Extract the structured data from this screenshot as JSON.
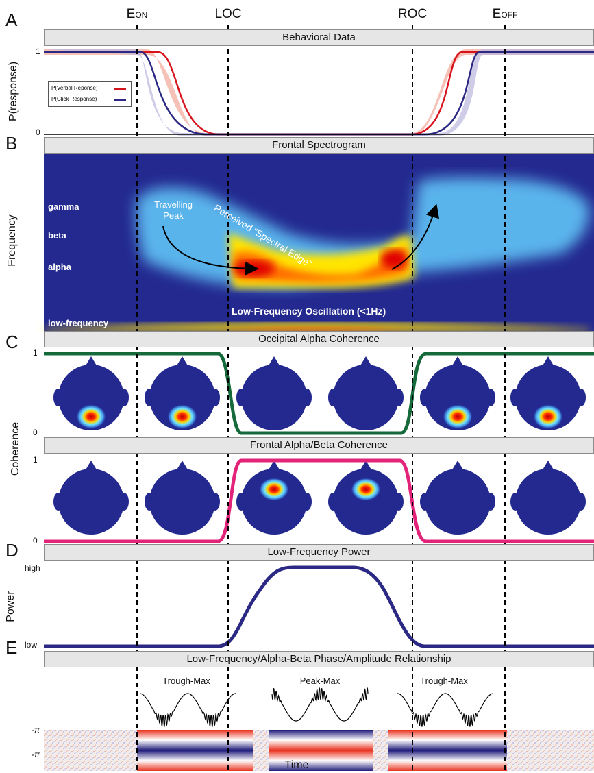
{
  "events": [
    {
      "name": "E_on",
      "label_main": "E",
      "label_sub": "ON",
      "t": 0
    },
    {
      "name": "LOC",
      "label_main": "LOC",
      "label_sub": "",
      "t": 1
    },
    {
      "name": "ROC",
      "label_main": "ROC",
      "label_sub": "",
      "t": 2
    },
    {
      "name": "E_off",
      "label_main": "E",
      "label_sub": "OFF",
      "t": 3
    }
  ],
  "panels": {
    "A": {
      "letter": "A",
      "title": "Behavioral Data",
      "ylabel": "P(response)",
      "ytick_top": "1",
      "ytick_bottom": "0"
    },
    "B": {
      "letter": "B",
      "title": "Frontal Spectrogram",
      "ylabel": "Frequency",
      "bands": [
        "gamma",
        "beta",
        "alpha",
        "low-frequency"
      ],
      "ann_peak": "Travelling Peak",
      "ann_peak_line1": "Travelling",
      "ann_peak_line2": "Peak",
      "ann_edge": "Perceived “Spectral Edge”",
      "ann_slow": "Low-Frequency Oscillation (<1Hz)"
    },
    "C": {
      "letter": "C",
      "title1": "Occipital Alpha Coherence",
      "title2": "Frontal Alpha/Beta Coherence",
      "ylabel": "Coherence",
      "ytick_top": "1",
      "ytick_bottom": "0"
    },
    "D": {
      "letter": "D",
      "title": "Low-Frequency Power",
      "ylabel": "Power",
      "ytick_top": "high",
      "ytick_bottom": "low"
    },
    "E": {
      "letter": "E",
      "title": "Low-Frequency/Alpha-Beta Phase/Amplitude Relationship",
      "xlabel": "Time",
      "ytick_top": "-π",
      "ytick_bottom": "-π",
      "waveforms": [
        "Trough-Max",
        "Peak-Max",
        "Trough-Max"
      ]
    }
  },
  "legend": {
    "verbal": "P(Verbal Reponse)",
    "click": "P(Click Response)"
  },
  "colors": {
    "verbal": "#d7131c",
    "verbal_band": "#f4b3a6",
    "click": "#2b2983",
    "click_band": "#b9b6dc",
    "occipital": "#16693a",
    "frontal": "#e2237a",
    "power": "#2b2983",
    "spectrogram_bg": "#23298f",
    "head": "#23298f",
    "bar_bg": "#e6e6e6"
  },
  "chart_data": [
    {
      "type": "line",
      "panel": "A",
      "title": "Behavioral Data",
      "ylabel": "P(response)",
      "ylim": [
        0,
        1
      ],
      "series": [
        {
          "name": "P(Verbal Reponse)",
          "points": [
            [
              "start",
              1
            ],
            [
              "E_on",
              1
            ],
            [
              "mid E_on-LOC",
              0.4
            ],
            [
              "LOC",
              0
            ],
            [
              "ROC",
              0
            ],
            [
              "mid ROC-E_off",
              0.7
            ],
            [
              "E_off",
              1
            ],
            [
              "end",
              1
            ]
          ]
        },
        {
          "name": "P(Click Response)",
          "points": [
            [
              "start",
              1
            ],
            [
              "E_on",
              0.95
            ],
            [
              "mid E_on-LOC",
              0.1
            ],
            [
              "LOC",
              0
            ],
            [
              "ROC",
              0
            ],
            [
              "mid ROC-E_off",
              0.2
            ],
            [
              "E_off",
              0.95
            ],
            [
              "end",
              1
            ]
          ]
        }
      ]
    },
    {
      "type": "heatmap",
      "panel": "B",
      "title": "Frontal Spectrogram",
      "ylabel": "Frequency",
      "y_categories": [
        "low-frequency",
        "alpha",
        "beta",
        "gamma"
      ]
    },
    {
      "type": "line",
      "panel": "C",
      "title": "Occipital Alpha Coherence",
      "ylabel": "Coherence",
      "ylim": [
        0,
        1
      ],
      "points": [
        [
          "start",
          1
        ],
        [
          "LOC",
          1
        ],
        [
          "LOC+",
          0
        ],
        [
          "ROC",
          0
        ],
        [
          "ROC+",
          1
        ],
        [
          "end",
          1
        ]
      ]
    },
    {
      "type": "line",
      "panel": "C",
      "title": "Frontal Alpha/Beta Coherence",
      "ylabel": "Coherence",
      "ylim": [
        0,
        1
      ],
      "points": [
        [
          "start",
          0
        ],
        [
          "LOC",
          0
        ],
        [
          "LOC+",
          1
        ],
        [
          "ROC",
          1
        ],
        [
          "ROC+",
          0
        ],
        [
          "end",
          0
        ]
      ]
    },
    {
      "type": "line",
      "panel": "D",
      "title": "Low-Frequency Power",
      "ylabel": "Power",
      "ylim": [
        "low",
        "high"
      ],
      "points": [
        [
          "start",
          "low"
        ],
        [
          "LOC",
          "low"
        ],
        [
          "peak start",
          "high"
        ],
        [
          "peak end",
          "high"
        ],
        [
          "ROC",
          "low"
        ],
        [
          "end",
          "low"
        ]
      ]
    },
    {
      "type": "heatmap",
      "panel": "E",
      "title": "Low-Frequency/Alpha-Beta Phase/Amplitude Relationship",
      "xlabel": "Time",
      "segments": [
        "noise",
        "Trough-Max",
        "Peak-Max",
        "Trough-Max",
        "noise"
      ]
    }
  ]
}
